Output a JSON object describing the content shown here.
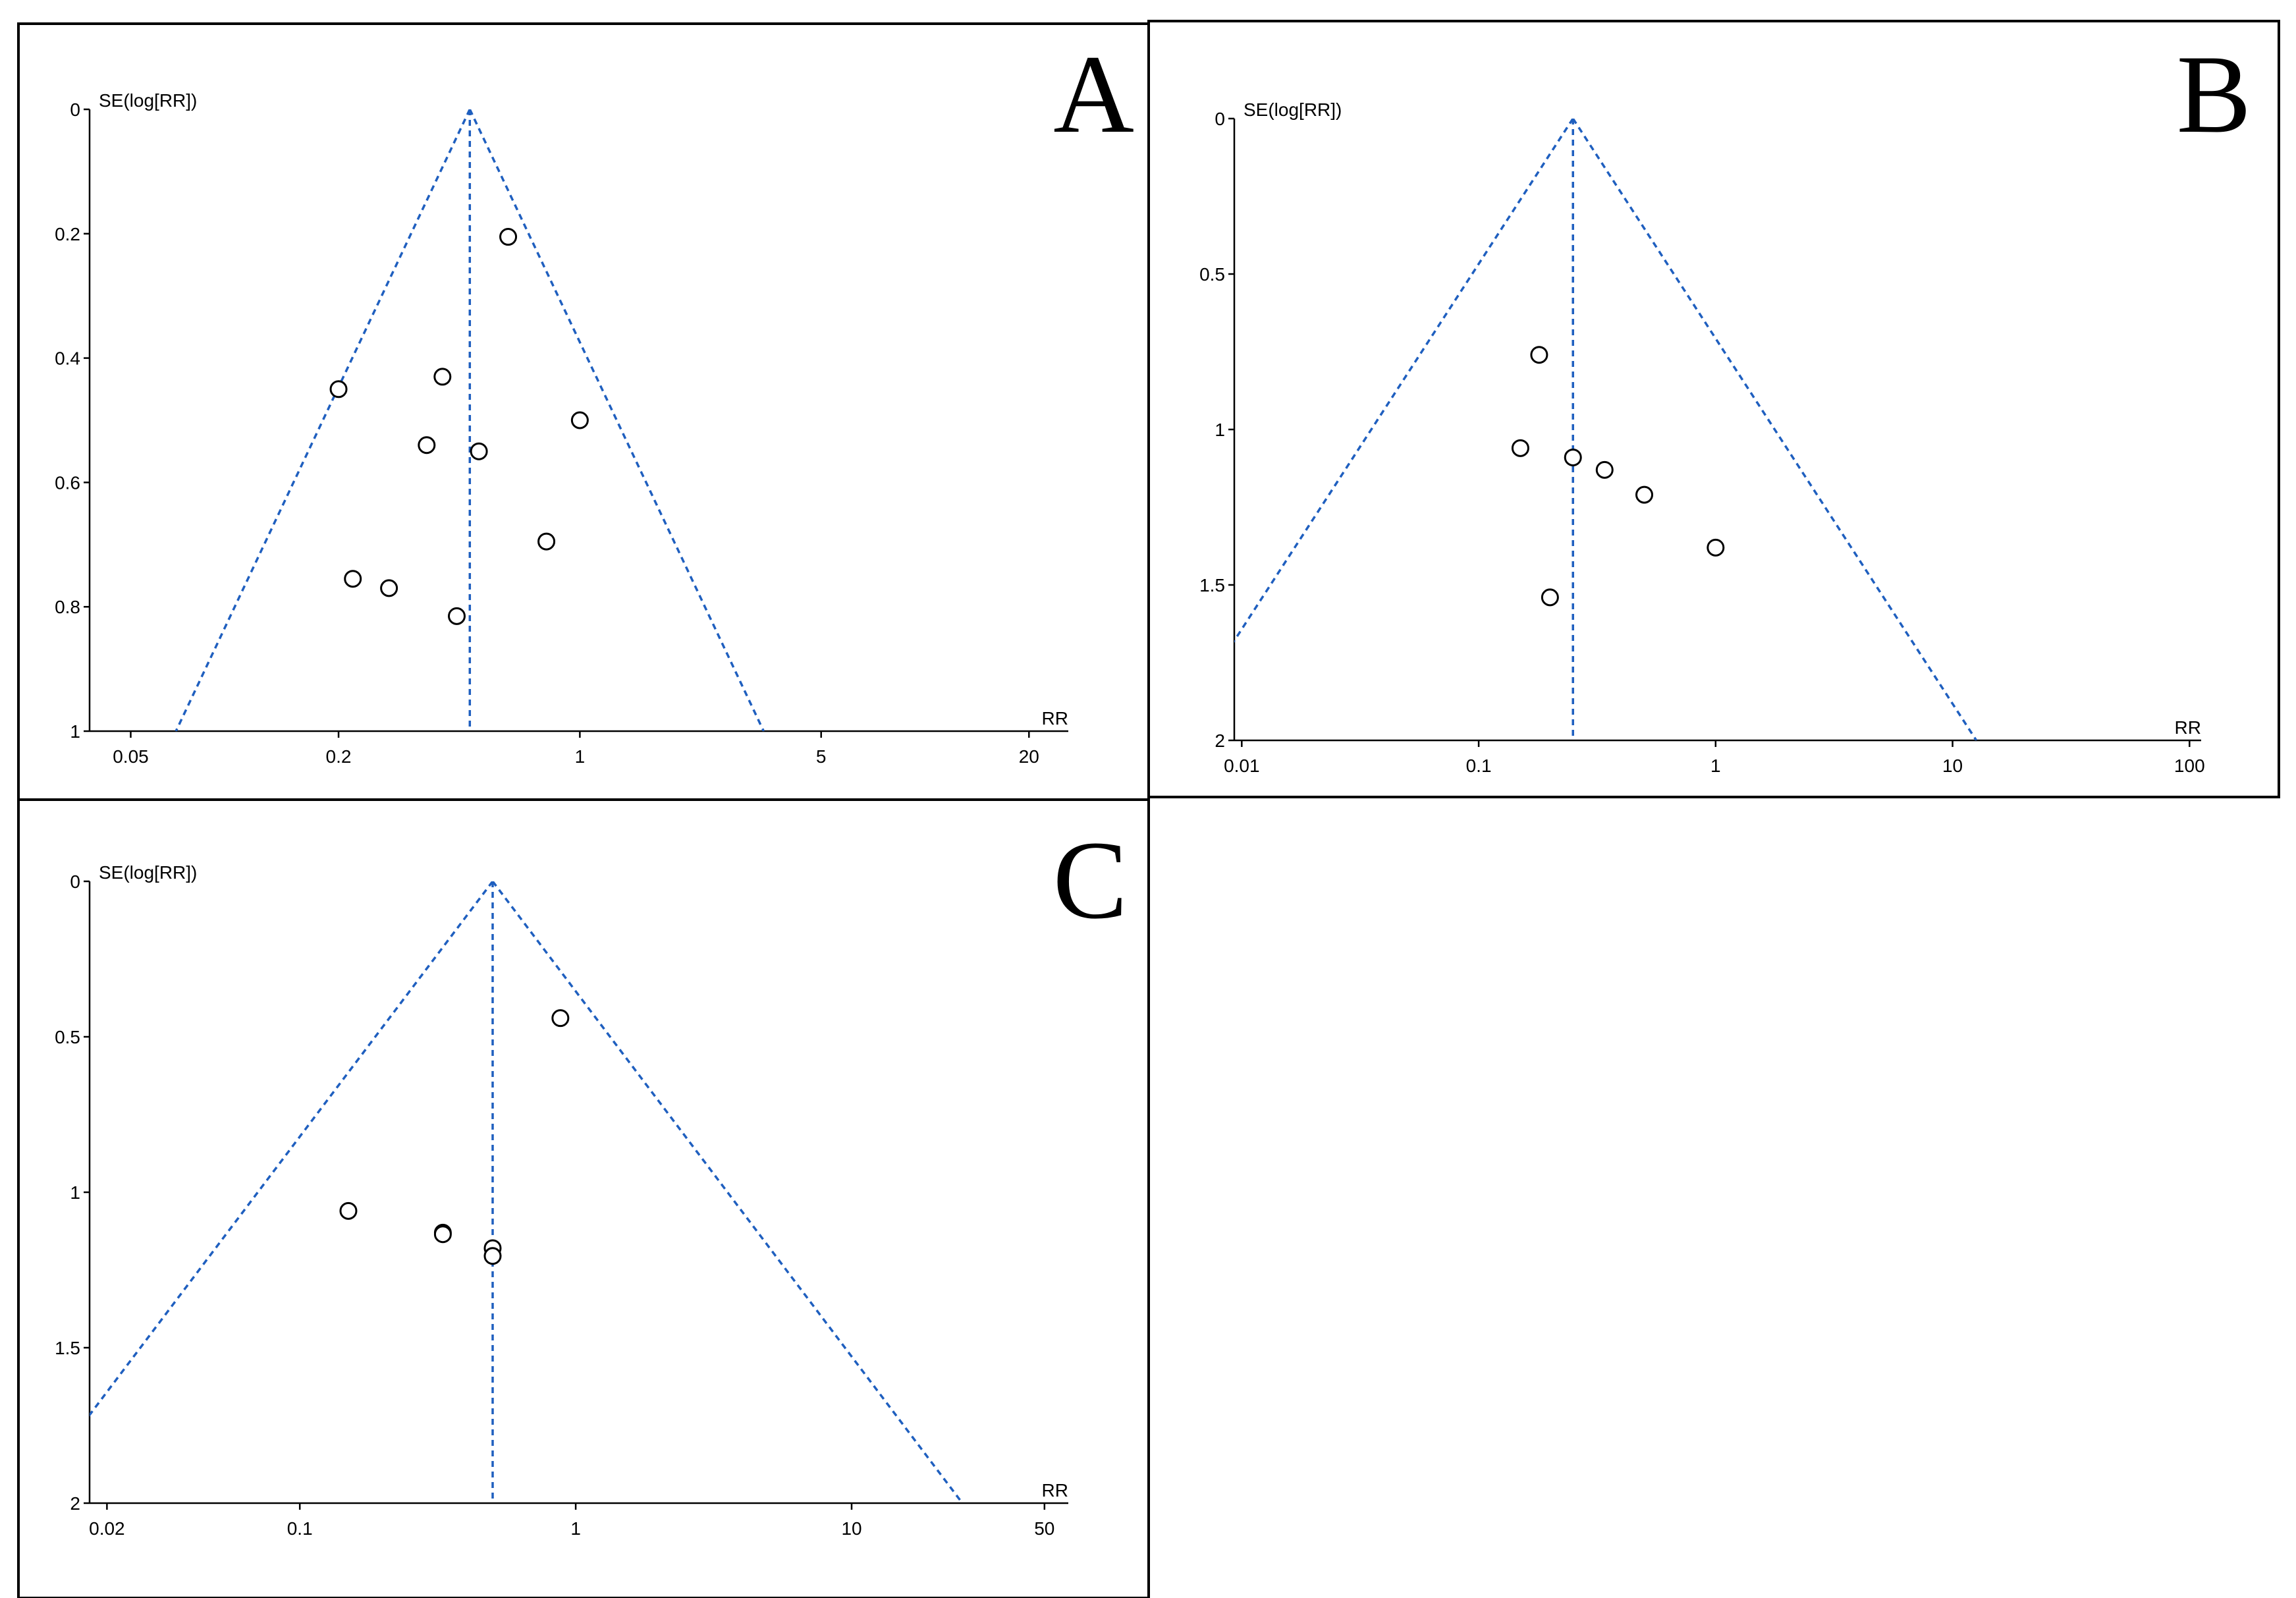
{
  "colors": {
    "funnel": "#1f5fbf",
    "points": "#000000"
  },
  "chart_data": [
    {
      "panel": "A",
      "type": "scatter",
      "subtype": "funnel-plot",
      "xlabel": "RR",
      "ylabel": "SE(log[RR])",
      "xscale": "log",
      "xticks": [
        0.05,
        0.2,
        1,
        5,
        20
      ],
      "xtick_labels": [
        "0.05",
        "0.2",
        "1",
        "5",
        "20"
      ],
      "xlim": [
        0.038,
        26
      ],
      "ylim": [
        0,
        1
      ],
      "yticks": [
        0,
        0.2,
        0.4,
        0.6,
        0.8,
        1
      ],
      "ytick_labels": [
        "0",
        "0.2",
        "0.4",
        "0.6",
        "0.8",
        "1"
      ],
      "y_inverted": true,
      "pooled_rr": 0.48,
      "points": [
        {
          "x": 0.62,
          "y": 0.205
        },
        {
          "x": 0.4,
          "y": 0.43
        },
        {
          "x": 0.2,
          "y": 0.45
        },
        {
          "x": 1.0,
          "y": 0.5
        },
        {
          "x": 0.36,
          "y": 0.54
        },
        {
          "x": 0.51,
          "y": 0.55
        },
        {
          "x": 0.8,
          "y": 0.695
        },
        {
          "x": 0.22,
          "y": 0.755
        },
        {
          "x": 0.28,
          "y": 0.77
        },
        {
          "x": 0.44,
          "y": 0.815
        }
      ]
    },
    {
      "panel": "B",
      "type": "scatter",
      "subtype": "funnel-plot",
      "xlabel": "RR",
      "ylabel": "SE(log[RR])",
      "xscale": "log",
      "xticks": [
        0.01,
        0.1,
        1,
        10,
        100
      ],
      "xtick_labels": [
        "0.01",
        "0.1",
        "1",
        "10",
        "100"
      ],
      "xlim": [
        0.0093,
        112
      ],
      "ylim": [
        0,
        2
      ],
      "yticks": [
        0,
        0.5,
        1,
        1.5,
        2
      ],
      "ytick_labels": [
        "0",
        "0.5",
        "1",
        "1.5",
        "2"
      ],
      "y_inverted": true,
      "pooled_rr": 0.25,
      "points": [
        {
          "x": 0.18,
          "y": 0.76
        },
        {
          "x": 0.15,
          "y": 1.06
        },
        {
          "x": 0.25,
          "y": 1.09
        },
        {
          "x": 0.34,
          "y": 1.13
        },
        {
          "x": 0.5,
          "y": 1.21
        },
        {
          "x": 1.0,
          "y": 1.38
        },
        {
          "x": 0.2,
          "y": 1.54
        }
      ]
    },
    {
      "panel": "C",
      "type": "scatter",
      "subtype": "funnel-plot",
      "xlabel": "RR",
      "ylabel": "SE(log[RR])",
      "xscale": "log",
      "xticks": [
        0.02,
        0.1,
        1,
        10,
        50
      ],
      "xtick_labels": [
        "0.02",
        "0.1",
        "1",
        "10",
        "50"
      ],
      "xlim": [
        0.0173,
        61
      ],
      "ylim": [
        0,
        2
      ],
      "yticks": [
        0,
        0.5,
        1,
        1.5,
        2
      ],
      "ytick_labels": [
        "0",
        "0.5",
        "1",
        "1.5",
        "2"
      ],
      "y_inverted": true,
      "pooled_rr": 0.5,
      "points": [
        {
          "x": 0.88,
          "y": 0.44
        },
        {
          "x": 0.15,
          "y": 1.06
        },
        {
          "x": 0.33,
          "y": 1.13
        },
        {
          "x": 0.33,
          "y": 1.135
        },
        {
          "x": 0.5,
          "y": 1.18
        },
        {
          "x": 0.5,
          "y": 1.205
        }
      ]
    }
  ]
}
